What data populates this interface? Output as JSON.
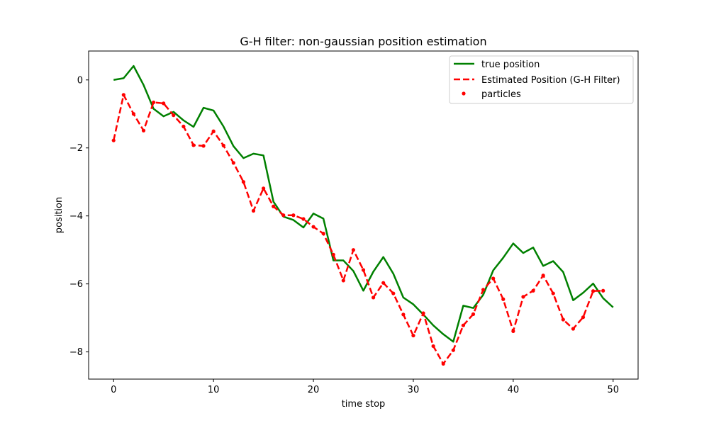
{
  "chart_data": {
    "type": "line",
    "title": "G-H filter: non-gaussian position estimation",
    "xlabel": "time stop",
    "ylabel": "position",
    "xlim": [
      -2.5,
      52.5
    ],
    "ylim": [
      -8.8,
      0.85
    ],
    "xticks": [
      0,
      10,
      20,
      30,
      40,
      50
    ],
    "yticks": [
      0,
      -2,
      -4,
      -6,
      -8
    ],
    "xtick_labels": [
      "0",
      "10",
      "20",
      "30",
      "40",
      "50"
    ],
    "ytick_labels": [
      "0",
      "−2",
      "−4",
      "−6",
      "−8"
    ],
    "grid": false,
    "legend_position": "top-right",
    "series": [
      {
        "name": "true position",
        "kind": "line",
        "color": "#008000",
        "x": [
          0,
          1,
          2,
          3,
          4,
          5,
          6,
          7,
          8,
          9,
          10,
          11,
          12,
          13,
          14,
          15,
          16,
          17,
          18,
          19,
          20,
          21,
          22,
          23,
          24,
          25,
          26,
          27,
          28,
          29,
          30,
          31,
          32,
          33,
          34,
          35,
          36,
          37,
          38,
          39,
          40,
          41,
          42,
          43,
          44,
          45,
          46,
          47,
          48,
          49,
          50
        ],
        "y": [
          0.0,
          0.05,
          0.41,
          -0.15,
          -0.85,
          -1.07,
          -0.94,
          -1.19,
          -1.38,
          -0.82,
          -0.9,
          -1.37,
          -1.95,
          -2.3,
          -2.17,
          -2.22,
          -3.58,
          -4.02,
          -4.12,
          -4.34,
          -3.93,
          -4.08,
          -5.31,
          -5.31,
          -5.62,
          -6.2,
          -5.64,
          -5.21,
          -5.7,
          -6.4,
          -6.6,
          -6.9,
          -7.22,
          -7.48,
          -7.7,
          -6.64,
          -6.71,
          -6.32,
          -5.6,
          -5.23,
          -4.81,
          -5.09,
          -4.93,
          -5.47,
          -5.33,
          -5.65,
          -6.48,
          -6.26,
          -5.99,
          -6.42,
          -6.69
        ]
      },
      {
        "name": "Estimated Position (G-H Filter)",
        "kind": "dashed-line",
        "color": "#ff0000",
        "x": [
          0,
          1,
          2,
          3,
          4,
          5,
          6,
          7,
          8,
          9,
          10,
          11,
          12,
          13,
          14,
          15,
          16,
          17,
          18,
          19,
          20,
          21,
          22,
          23,
          24,
          25,
          26,
          27,
          28,
          29,
          30,
          31,
          32,
          33,
          34,
          35,
          36,
          37,
          38,
          39,
          40,
          41,
          42,
          43,
          44,
          45,
          46,
          47,
          48,
          49
        ],
        "y": [
          -1.78,
          -0.44,
          -1.0,
          -1.49,
          -0.66,
          -0.69,
          -1.04,
          -1.37,
          -1.92,
          -1.94,
          -1.51,
          -1.93,
          -2.44,
          -3.0,
          -3.85,
          -3.19,
          -3.72,
          -3.98,
          -3.98,
          -4.09,
          -4.32,
          -4.52,
          -5.14,
          -5.9,
          -5.0,
          -5.59,
          -6.4,
          -5.97,
          -6.28,
          -6.9,
          -7.52,
          -6.86,
          -7.83,
          -8.35,
          -7.95,
          -7.22,
          -6.89,
          -6.17,
          -5.84,
          -6.45,
          -7.39,
          -6.38,
          -6.2,
          -5.75,
          -6.28,
          -7.05,
          -7.32,
          -6.98,
          -6.21,
          -6.2
        ]
      },
      {
        "name": "particles",
        "kind": "scatter",
        "color": "#ff0000",
        "x": [
          0,
          1,
          2,
          3,
          4,
          5,
          6,
          7,
          8,
          9,
          10,
          11,
          12,
          13,
          14,
          15,
          16,
          17,
          18,
          19,
          20,
          21,
          22,
          23,
          24,
          25,
          26,
          27,
          28,
          29,
          30,
          31,
          32,
          33,
          34,
          35,
          36,
          37,
          38,
          39,
          40,
          41,
          42,
          43,
          44,
          45,
          46,
          47,
          48,
          49
        ],
        "y": [
          -1.78,
          -0.44,
          -1.0,
          -1.49,
          -0.66,
          -0.69,
          -1.04,
          -1.37,
          -1.92,
          -1.94,
          -1.51,
          -1.93,
          -2.44,
          -3.0,
          -3.85,
          -3.19,
          -3.72,
          -3.98,
          -3.98,
          -4.09,
          -4.32,
          -4.52,
          -5.14,
          -5.9,
          -5.0,
          -5.59,
          -6.4,
          -5.97,
          -6.28,
          -6.9,
          -7.52,
          -6.86,
          -7.83,
          -8.35,
          -7.95,
          -7.22,
          -6.89,
          -6.17,
          -5.84,
          -6.45,
          -7.39,
          -6.38,
          -6.2,
          -5.75,
          -6.28,
          -7.05,
          -7.32,
          -6.98,
          -6.21,
          -6.2
        ]
      }
    ]
  }
}
